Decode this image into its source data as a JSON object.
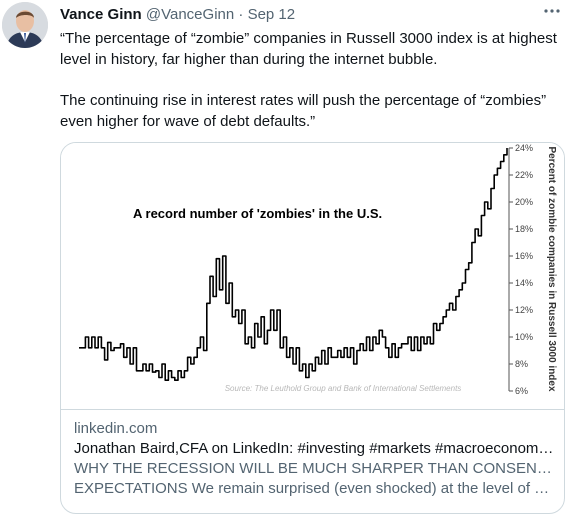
{
  "tweet": {
    "author_name": "Vance Ginn",
    "author_handle": "@VanceGinn",
    "separator": "·",
    "date": "Sep 12",
    "more_icon": "more-horizontal-icon",
    "text_lines": [
      "“The percentage of “zombie” companies in Russell 3000 index is at highest",
      "level in history, far higher than during the internet bubble.",
      "The continuing rise in interest rates will push the percentage of “zombies”",
      "even higher for wave of debt defaults.”"
    ]
  },
  "card": {
    "domain": "linkedin.com",
    "title": "Jonathan Baird,CFA on LinkedIn: #investing #markets #macroeconom…",
    "description_lines": [
      "WHY THE RECESSION WILL BE MUCH SHARPER THAN CONSENSUS",
      "EXPECTATIONS We remain surprised (even shocked) at the level of …"
    ]
  },
  "chart_data": {
    "type": "line",
    "title": "A record number of 'zombies' in the U.S.",
    "ylabel": "Percent of zombie companies in Russell 3000 index",
    "source": "Source: The Leuthold Group and Bank of International Settlements",
    "ylim": [
      6,
      24
    ],
    "y_ticks": [
      "6%",
      "8%",
      "10%",
      "12%",
      "14%",
      "16%",
      "18%",
      "20%",
      "22%",
      "24%"
    ],
    "axis_side": "right",
    "line_color": "#000000",
    "series": [
      {
        "values": [
          9.2,
          9.2,
          10,
          9.2,
          10,
          9.2,
          10,
          9.2,
          8.3,
          9.6,
          9,
          9.2,
          9.2,
          9.5,
          8.5,
          9.2,
          8,
          9.2,
          7.5,
          7.5,
          8,
          7.5,
          8,
          7.4,
          7.5,
          7,
          8,
          6.8,
          7.5,
          7,
          6.8,
          7.5,
          7,
          7.5,
          8.5,
          8,
          8.5,
          9.2,
          10,
          9,
          12.5,
          14.5,
          13,
          15.8,
          13.5,
          16,
          12.5,
          14,
          11.5,
          12,
          11,
          12,
          9.5,
          10,
          9.2,
          11,
          10,
          11.5,
          9.5,
          10.5,
          12,
          10.5,
          12,
          9.2,
          10,
          8.5,
          9.2,
          8,
          9.2,
          7.5,
          8,
          7,
          8,
          7.5,
          8.5,
          8,
          9,
          8,
          9.2,
          8.5,
          8.5,
          9,
          8.5,
          9.2,
          8.5,
          9.2,
          8,
          9,
          9.5,
          9,
          10,
          9,
          10,
          9.5,
          10.5,
          10,
          9.2,
          8.5,
          9.5,
          8.5,
          9.2,
          9.5,
          9.5,
          10,
          9,
          10,
          9,
          10,
          9.5,
          10,
          9.5,
          11,
          10.5,
          11,
          11.5,
          12,
          12.5,
          12,
          13,
          13.5,
          14,
          15,
          15.5,
          17,
          18,
          17.5,
          19,
          20,
          19.5,
          21,
          22,
          22.5,
          23,
          23.5,
          24
        ]
      }
    ],
    "grid": false,
    "legend": "none"
  }
}
